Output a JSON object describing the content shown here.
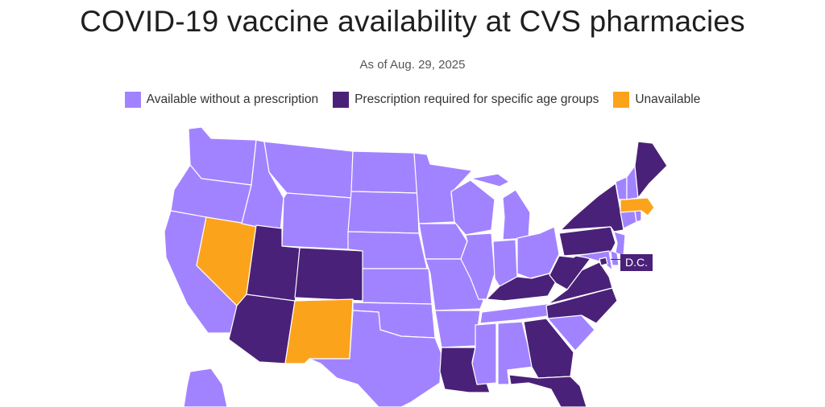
{
  "title": "COVID-19 vaccine availability at CVS pharmacies",
  "subtitle": "As of Aug. 29, 2025",
  "colors": {
    "available": "#a283ff",
    "prescription": "#4a2178",
    "unavailable": "#fca31c"
  },
  "legend": [
    {
      "label": "Available without a prescription",
      "color": "#a283ff"
    },
    {
      "label": "Prescription required for specific age groups",
      "color": "#4a2178"
    },
    {
      "label": "Unavailable",
      "color": "#fca31c"
    }
  ],
  "dc_label": "D.C.",
  "states": {
    "WA": "available",
    "OR": "available",
    "CA": "available",
    "NV": "unavailable",
    "ID": "available",
    "MT": "available",
    "WY": "available",
    "UT": "prescription",
    "CO": "prescription",
    "AZ": "prescription",
    "NM": "unavailable",
    "ND": "available",
    "SD": "available",
    "NE": "available",
    "KS": "available",
    "OK": "available",
    "TX": "available",
    "MN": "available",
    "IA": "available",
    "MO": "available",
    "AR": "available",
    "LA": "prescription",
    "WI": "available",
    "IL": "available",
    "MI": "available",
    "IN": "available",
    "OH": "available",
    "KY": "prescription",
    "TN": "available",
    "MS": "available",
    "AL": "available",
    "GA": "prescription",
    "FL": "prescription",
    "SC": "available",
    "NC": "prescription",
    "VA": "prescription",
    "WV": "prescription",
    "PA": "prescription",
    "NY": "prescription",
    "VT": "available",
    "NH": "available",
    "ME": "prescription",
    "MA": "unavailable",
    "CT": "available",
    "RI": "available",
    "NJ": "available",
    "DE": "available",
    "MD": "available",
    "DC": "prescription",
    "AK": "available"
  }
}
